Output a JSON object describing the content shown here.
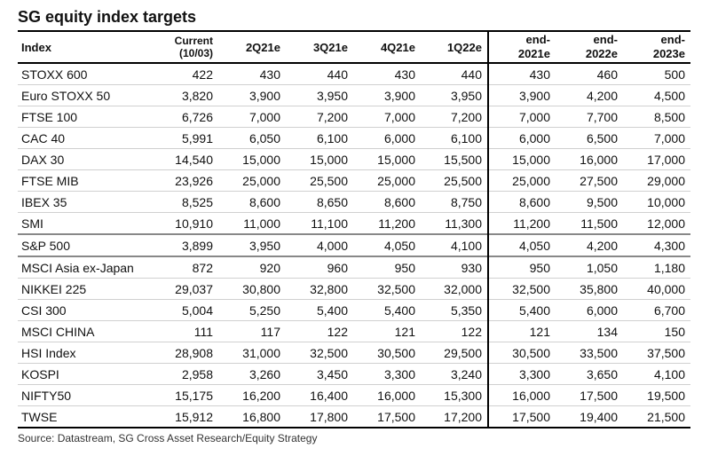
{
  "title": "SG equity index targets",
  "columns": {
    "index": "Index",
    "current_line1": "Current",
    "current_line2": "(10/03)",
    "q2": "2Q21e",
    "q3": "3Q21e",
    "q4": "4Q21e",
    "q1_22": "1Q22e",
    "end21_line1": "end-",
    "end21_line2": "2021e",
    "end22_line1": "end-",
    "end22_line2": "2022e",
    "end23_line1": "end-",
    "end23_line2": "2023e"
  },
  "rows": [
    [
      "STOXX 600",
      "422",
      "430",
      "440",
      "430",
      "440",
      "430",
      "460",
      "500"
    ],
    [
      "Euro STOXX 50",
      "3,820",
      "3,900",
      "3,950",
      "3,900",
      "3,950",
      "3,900",
      "4,200",
      "4,500"
    ],
    [
      "FTSE 100",
      "6,726",
      "7,000",
      "7,200",
      "7,000",
      "7,200",
      "7,000",
      "7,700",
      "8,500"
    ],
    [
      "CAC 40",
      "5,991",
      "6,050",
      "6,100",
      "6,000",
      "6,100",
      "6,000",
      "6,500",
      "7,000"
    ],
    [
      "DAX 30",
      "14,540",
      "15,000",
      "15,000",
      "15,000",
      "15,500",
      "15,000",
      "16,000",
      "17,000"
    ],
    [
      "FTSE MIB",
      "23,926",
      "25,000",
      "25,500",
      "25,000",
      "25,500",
      "25,000",
      "27,500",
      "29,000"
    ],
    [
      "IBEX 35",
      "8,525",
      "8,600",
      "8,650",
      "8,600",
      "8,750",
      "8,600",
      "9,500",
      "10,000"
    ],
    [
      "SMI",
      "10,910",
      "11,000",
      "11,100",
      "11,200",
      "11,300",
      "11,200",
      "11,500",
      "12,000"
    ],
    [
      "S&P 500",
      "3,899",
      "3,950",
      "4,000",
      "4,050",
      "4,100",
      "4,050",
      "4,200",
      "4,300"
    ],
    [
      "MSCI Asia ex-Japan",
      "872",
      "920",
      "960",
      "950",
      "930",
      "950",
      "1,050",
      "1,180"
    ],
    [
      "NIKKEI 225",
      "29,037",
      "30,800",
      "32,800",
      "32,500",
      "32,000",
      "32,500",
      "35,800",
      "40,000"
    ],
    [
      "CSI 300",
      "5,004",
      "5,250",
      "5,400",
      "5,400",
      "5,350",
      "5,400",
      "6,000",
      "6,700"
    ],
    [
      "MSCI CHINA",
      "111",
      "117",
      "122",
      "121",
      "122",
      "121",
      "134",
      "150"
    ],
    [
      "HSI Index",
      "28,908",
      "31,000",
      "32,500",
      "30,500",
      "29,500",
      "30,500",
      "33,500",
      "37,500"
    ],
    [
      "KOSPI",
      "2,958",
      "3,260",
      "3,450",
      "3,300",
      "3,240",
      "3,300",
      "3,650",
      "4,100"
    ],
    [
      "NIFTY50",
      "15,175",
      "16,200",
      "16,400",
      "16,000",
      "15,300",
      "16,000",
      "17,500",
      "19,500"
    ],
    [
      "TWSE",
      "15,912",
      "16,800",
      "17,800",
      "17,500",
      "17,200",
      "17,500",
      "19,400",
      "21,500"
    ]
  ],
  "source": "Source: Datastream, SG Cross Asset Research/Equity Strategy"
}
